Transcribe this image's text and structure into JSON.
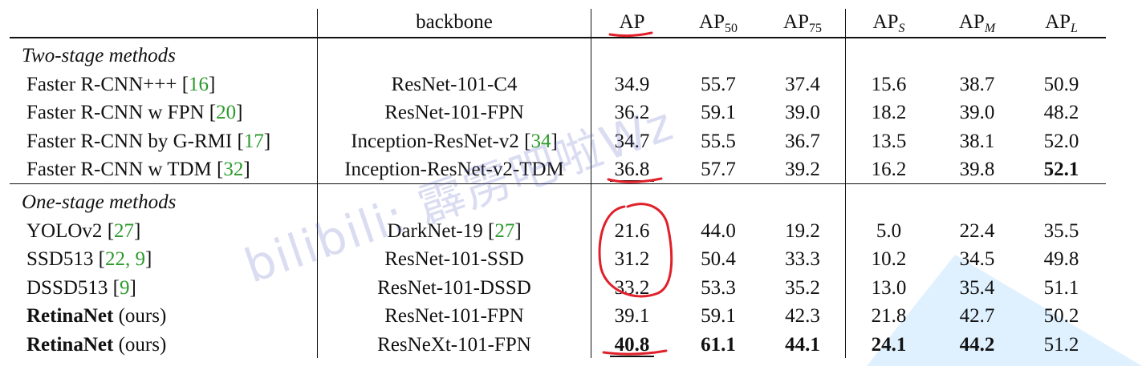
{
  "header": {
    "backbone": "backbone",
    "ap": "AP",
    "ap50": {
      "base": "AP",
      "sub": "50"
    },
    "ap75": {
      "base": "AP",
      "sub": "75"
    },
    "aps": {
      "base": "AP",
      "sub": "S"
    },
    "apm": {
      "base": "AP",
      "sub": "M"
    },
    "apl": {
      "base": "AP",
      "sub": "L"
    }
  },
  "sections": [
    {
      "title": "Two-stage methods",
      "rows": [
        {
          "method": "Faster R-CNN+++ ",
          "ref": "16",
          "backbone": "ResNet-101-C4",
          "bref": "",
          "ap": "34.9",
          "ap50": "55.7",
          "ap75": "37.4",
          "aps": "15.6",
          "apm": "38.7",
          "apl": "50.9"
        },
        {
          "method": "Faster R-CNN w FPN ",
          "ref": "20",
          "backbone": "ResNet-101-FPN",
          "bref": "",
          "ap": "36.2",
          "ap50": "59.1",
          "ap75": "39.0",
          "aps": "18.2",
          "apm": "39.0",
          "apl": "48.2"
        },
        {
          "method": "Faster R-CNN by G-RMI ",
          "ref": "17",
          "backbone": "Inception-ResNet-v2 ",
          "bref": "34",
          "ap": "34.7",
          "ap50": "55.5",
          "ap75": "36.7",
          "aps": "13.5",
          "apm": "38.1",
          "apl": "52.0"
        },
        {
          "method": "Faster R-CNN w TDM ",
          "ref": "32",
          "backbone": "Inception-ResNet-v2-TDM",
          "bref": "",
          "ap": "36.8",
          "ap50": "57.7",
          "ap75": "39.2",
          "aps": "16.2",
          "apm": "39.8",
          "apl": "52.1"
        }
      ]
    },
    {
      "title": "One-stage methods",
      "rows": [
        {
          "method": "YOLOv2 ",
          "ref": "27",
          "backbone": "DarkNet-19 ",
          "bref": "27",
          "ap": "21.6",
          "ap50": "44.0",
          "ap75": "19.2",
          "aps": "5.0",
          "apm": "22.4",
          "apl": "35.5"
        },
        {
          "method": "SSD513 ",
          "ref": "22, 9",
          "backbone": "ResNet-101-SSD",
          "bref": "",
          "ap": "31.2",
          "ap50": "50.4",
          "ap75": "33.3",
          "aps": "10.2",
          "apm": "34.5",
          "apl": "49.8"
        },
        {
          "method": "DSSD513 ",
          "ref": "9",
          "backbone": "ResNet-101-DSSD",
          "bref": "",
          "ap": "33.2",
          "ap50": "53.3",
          "ap75": "35.2",
          "aps": "13.0",
          "apm": "35.4",
          "apl": "51.1"
        },
        {
          "method_bold": "RetinaNet",
          "method": " (ours)",
          "ref": "",
          "backbone": "ResNet-101-FPN",
          "bref": "",
          "ap": "39.1",
          "ap50": "59.1",
          "ap75": "42.3",
          "aps": "21.8",
          "apm": "42.7",
          "apl": "50.2"
        },
        {
          "method_bold": "RetinaNet",
          "method": " (ours)",
          "ref": "",
          "backbone": "ResNeXt-101-FPN",
          "bref": "",
          "ap": "40.8",
          "ap50": "61.1",
          "ap75": "44.1",
          "aps": "24.1",
          "apm": "44.2",
          "apl": "51.2"
        }
      ]
    }
  ],
  "watermark": "bilibili: 霹雳吧啦Wz",
  "colors": {
    "ref": "#2b9a2b",
    "annotation": "#e0202a",
    "triangle": "#d6ecfa"
  }
}
